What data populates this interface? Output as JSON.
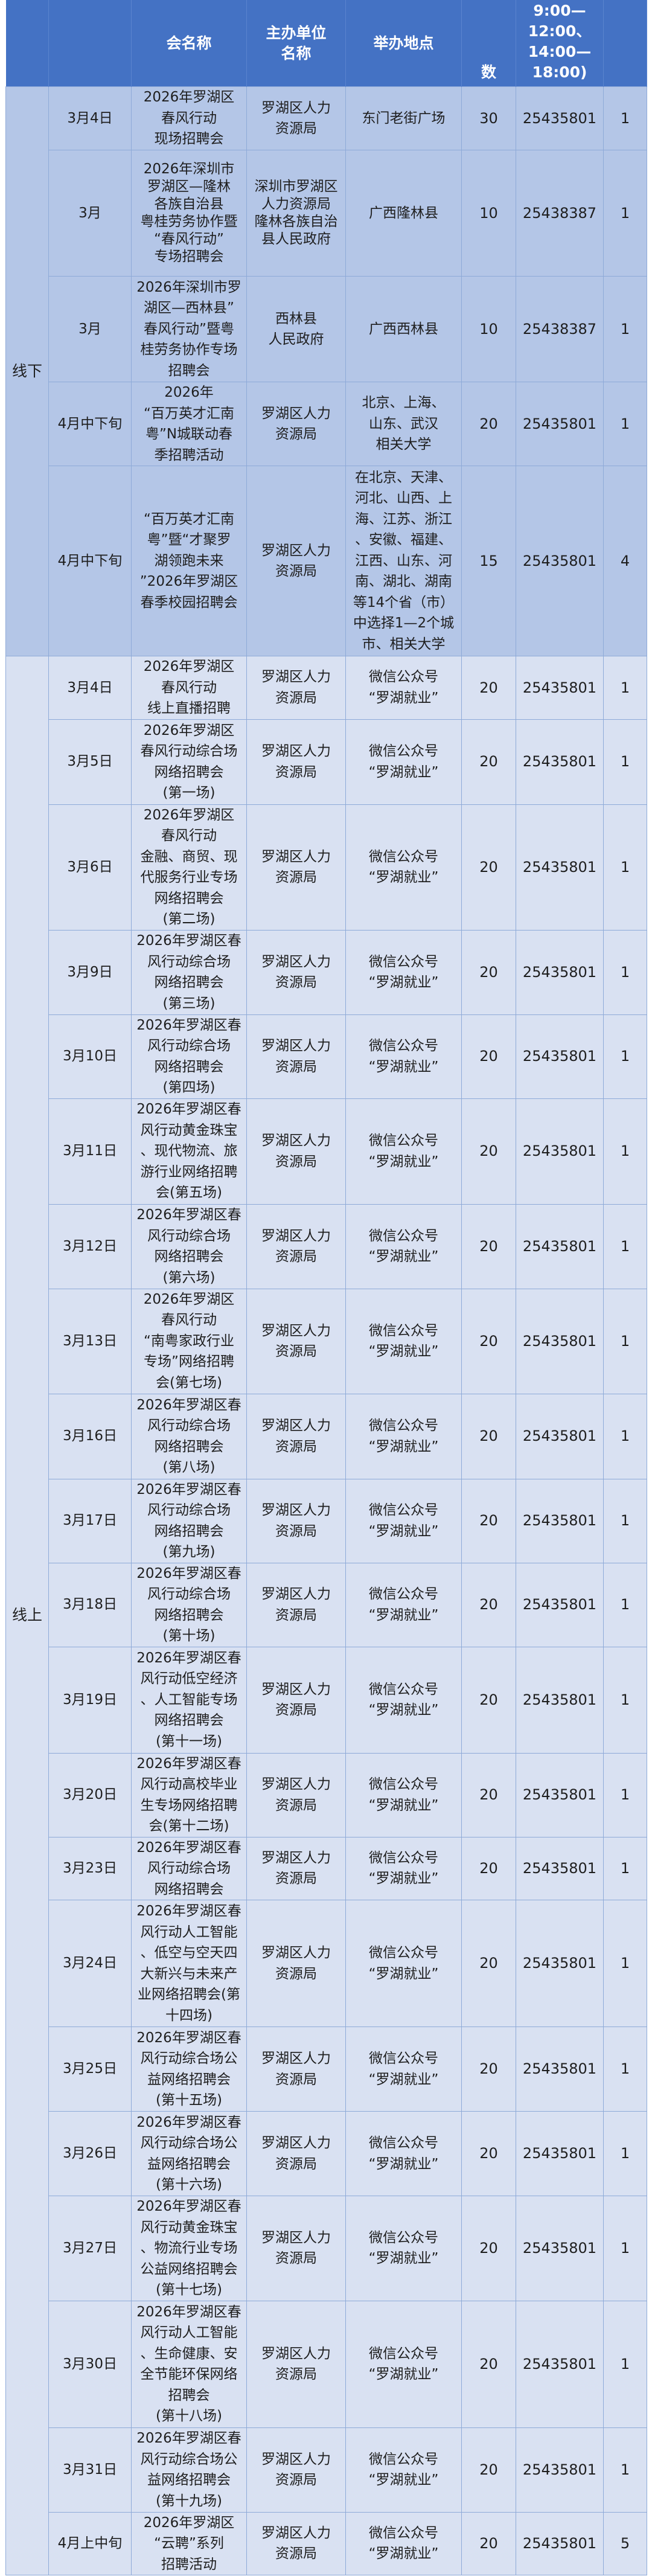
{
  "header": {
    "col1": "",
    "col2": "",
    "col3": "会名称",
    "col4": "主办单位\n名称",
    "col5": "举办地点",
    "col6": "数",
    "col7": "9:00—12:00、\n14:00—18:00)",
    "col8": ""
  },
  "colors": {
    "header": "#4472c4",
    "offline_bg": "#b4c6e7",
    "online_bg": "#d9e1f2"
  },
  "groups": [
    {
      "category": "线下",
      "type": "offline",
      "rows": [
        {
          "date": "3月4日",
          "name": "2026年罗湖区\n春风行动\n现场招聘会",
          "organizer": "罗湖区人力\n资源局",
          "location": "东门老街广场",
          "count": "30",
          "phone": "25435801",
          "sessions": "1"
        },
        {
          "date": "3月",
          "name": "2026年深圳市\n罗湖区—隆林\n各族自治县\n粤桂劳务协作暨\n“春风行动”\n专场招聘会",
          "organizer": "深圳市罗湖区\n人力资源局\n隆林各族自治\n县人民政府",
          "location": "广西隆林县",
          "count": "10",
          "phone": "25438387",
          "sessions": "1"
        },
        {
          "date": "3月",
          "name": "2026年深圳市罗\n湖区—西林县”\n春风行动”暨粤\n桂劳务协作专场\n招聘会",
          "organizer": "西林县\n人民政府",
          "location": "广西西林县",
          "count": "10",
          "phone": "25438387",
          "sessions": "1"
        },
        {
          "date": "4月中下旬",
          "name": "2026年\n“百万英才汇南\n粤”N城联动春\n季招聘活动",
          "organizer": "罗湖区人力\n资源局",
          "location": "北京、上海、\n山东、武汉\n相关大学",
          "count": "20",
          "phone": "25435801",
          "sessions": "1"
        },
        {
          "date": "4月中下旬",
          "name": "“百万英才汇南\n粤”暨“才聚罗\n湖领跑未来\n”2026年罗湖区\n春季校园招聘会",
          "organizer": "罗湖区人力\n资源局",
          "location": "在北京、天津、\n河北、山西、上\n海、江苏、浙江\n、安徽、福建、\n江西、山东、河\n南、湖北、湖南\n等14个省（市）\n中选择1—2个城\n市、相关大学",
          "count": "15",
          "phone": "25435801",
          "sessions": "4"
        }
      ]
    },
    {
      "category": "线上",
      "type": "online",
      "rows": [
        {
          "date": "3月4日",
          "name": "2026年罗湖区\n春风行动\n线上直播招聘",
          "organizer": "罗湖区人力\n资源局",
          "location": "微信公众号\n“罗湖就业”",
          "count": "20",
          "phone": "25435801",
          "sessions": "1"
        },
        {
          "date": "3月5日",
          "name": "2026年罗湖区\n春风行动综合场\n网络招聘会\n(第一场)",
          "organizer": "罗湖区人力\n资源局",
          "location": "微信公众号\n“罗湖就业”",
          "count": "20",
          "phone": "25435801",
          "sessions": "1"
        },
        {
          "date": "3月6日",
          "name": "2026年罗湖区\n春风行动\n金融、商贸、现\n代服务行业专场\n网络招聘会\n(第二场)",
          "organizer": "罗湖区人力\n资源局",
          "location": "微信公众号\n“罗湖就业”",
          "count": "20",
          "phone": "25435801",
          "sessions": "1"
        },
        {
          "date": "3月9日",
          "name": "2026年罗湖区春\n风行动综合场\n网络招聘会\n(第三场)",
          "organizer": "罗湖区人力\n资源局",
          "location": "微信公众号\n“罗湖就业”",
          "count": "20",
          "phone": "25435801",
          "sessions": "1"
        },
        {
          "date": "3月10日",
          "name": "2026年罗湖区春\n风行动综合场\n网络招聘会\n(第四场)",
          "organizer": "罗湖区人力\n资源局",
          "location": "微信公众号\n“罗湖就业”",
          "count": "20",
          "phone": "25435801",
          "sessions": "1"
        },
        {
          "date": "3月11日",
          "name": "2026年罗湖区春\n风行动黄金珠宝\n、现代物流、旅\n游行业网络招聘\n会(第五场)",
          "organizer": "罗湖区人力\n资源局",
          "location": "微信公众号\n“罗湖就业”",
          "count": "20",
          "phone": "25435801",
          "sessions": "1"
        },
        {
          "date": "3月12日",
          "name": "2026年罗湖区春\n风行动综合场\n网络招聘会\n(第六场)",
          "organizer": "罗湖区人力\n资源局",
          "location": "微信公众号\n“罗湖就业”",
          "count": "20",
          "phone": "25435801",
          "sessions": "1"
        },
        {
          "date": "3月13日",
          "name": "2026年罗湖区\n春风行动\n“南粤家政行业\n专场”网络招聘\n会(第七场)",
          "organizer": "罗湖区人力\n资源局",
          "location": "微信公众号\n“罗湖就业”",
          "count": "20",
          "phone": "25435801",
          "sessions": "1"
        },
        {
          "date": "3月16日",
          "name": "2026年罗湖区春\n风行动综合场\n网络招聘会\n(第八场)",
          "organizer": "罗湖区人力\n资源局",
          "location": "微信公众号\n“罗湖就业”",
          "count": "20",
          "phone": "25435801",
          "sessions": "1"
        },
        {
          "date": "3月17日",
          "name": "2026年罗湖区春\n风行动综合场\n网络招聘会\n(第九场)",
          "organizer": "罗湖区人力\n资源局",
          "location": "微信公众号\n“罗湖就业”",
          "count": "20",
          "phone": "25435801",
          "sessions": "1"
        },
        {
          "date": "3月18日",
          "name": "2026年罗湖区春\n风行动综合场\n网络招聘会\n(第十场)",
          "organizer": "罗湖区人力\n资源局",
          "location": "微信公众号\n“罗湖就业”",
          "count": "20",
          "phone": "25435801",
          "sessions": "1"
        },
        {
          "date": "3月19日",
          "name": "2026年罗湖区春\n风行动低空经济\n、人工智能专场\n网络招聘会\n(第十一场)",
          "organizer": "罗湖区人力\n资源局",
          "location": "微信公众号\n“罗湖就业”",
          "count": "20",
          "phone": "25435801",
          "sessions": "1"
        },
        {
          "date": "3月20日",
          "name": "2026年罗湖区春\n风行动高校毕业\n生专场网络招聘\n会(第十二场)",
          "organizer": "罗湖区人力\n资源局",
          "location": "微信公众号\n“罗湖就业”",
          "count": "20",
          "phone": "25435801",
          "sessions": "1"
        },
        {
          "date": "3月23日",
          "name": "2026年罗湖区春\n风行动综合场\n网络招聘会",
          "organizer": "罗湖区人力\n资源局",
          "location": "微信公众号\n“罗湖就业”",
          "count": "20",
          "phone": "25435801",
          "sessions": "1"
        },
        {
          "date": "3月24日",
          "name": "2026年罗湖区春\n风行动人工智能\n、低空与空天四\n大新兴与未来产\n业网络招聘会(第\n十四场)",
          "organizer": "罗湖区人力\n资源局",
          "location": "微信公众号\n“罗湖就业”",
          "count": "20",
          "phone": "25435801",
          "sessions": "1"
        },
        {
          "date": "3月25日",
          "name": "2026年罗湖区春\n风行动综合场公\n益网络招聘会\n(第十五场)",
          "organizer": "罗湖区人力\n资源局",
          "location": "微信公众号\n“罗湖就业”",
          "count": "20",
          "phone": "25435801",
          "sessions": "1"
        },
        {
          "date": "3月26日",
          "name": "2026年罗湖区春\n风行动综合场公\n益网络招聘会\n(第十六场)",
          "organizer": "罗湖区人力\n资源局",
          "location": "微信公众号\n“罗湖就业”",
          "count": "20",
          "phone": "25435801",
          "sessions": "1"
        },
        {
          "date": "3月27日",
          "name": "2026年罗湖区春\n风行动黄金珠宝\n、物流行业专场\n公益网络招聘会\n(第十七场)",
          "organizer": "罗湖区人力\n资源局",
          "location": "微信公众号\n“罗湖就业”",
          "count": "20",
          "phone": "25435801",
          "sessions": "1"
        },
        {
          "date": "3月30日",
          "name": "2026年罗湖区春\n风行动人工智能\n、生命健康、安\n全节能环保网络\n招聘会\n(第十八场)",
          "organizer": "罗湖区人力\n资源局",
          "location": "微信公众号\n“罗湖就业”",
          "count": "20",
          "phone": "25435801",
          "sessions": "1"
        },
        {
          "date": "3月31日",
          "name": "2026年罗湖区春\n风行动综合场公\n益网络招聘会\n(第十九场)",
          "organizer": "罗湖区人力\n资源局",
          "location": "微信公众号\n“罗湖就业”",
          "count": "20",
          "phone": "25435801",
          "sessions": "1"
        },
        {
          "date": "4月上中旬",
          "name": "2026年罗湖区\n“云聘”系列\n招聘活动",
          "organizer": "罗湖区人力\n资源局",
          "location": "微信公众号\n“罗湖就业”",
          "count": "20",
          "phone": "25435801",
          "sessions": "5"
        }
      ]
    }
  ]
}
